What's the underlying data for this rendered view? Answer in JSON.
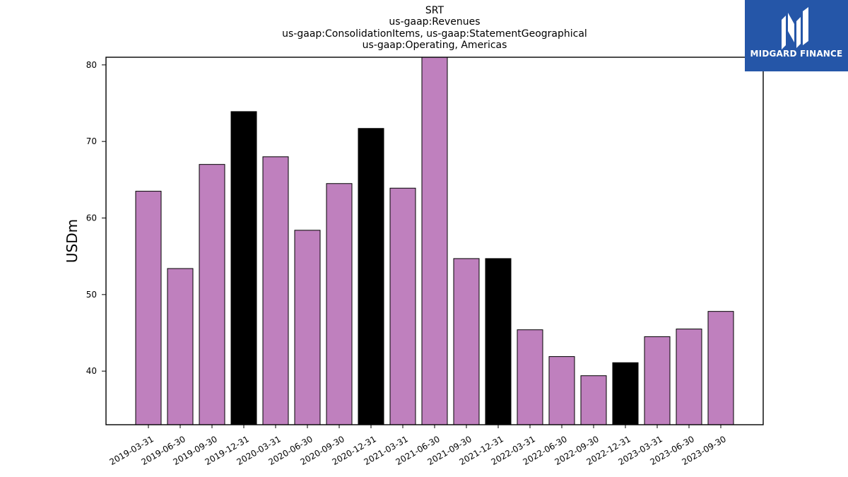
{
  "chart_data": {
    "type": "bar",
    "title_lines": [
      "SRT",
      "us-gaap:Revenues",
      "us-gaap:ConsolidationItems, us-gaap:StatementGeographical",
      "us-gaap:Operating, Americas"
    ],
    "xlabel": "",
    "ylabel": "USDm",
    "ylim": [
      33,
      81
    ],
    "yticks": [
      40,
      50,
      60,
      70,
      80
    ],
    "grid": false,
    "categories": [
      "2019-03-31",
      "2019-06-30",
      "2019-09-30",
      "2019-12-31",
      "2020-03-31",
      "2020-06-30",
      "2020-09-30",
      "2020-12-31",
      "2021-03-31",
      "2021-06-30",
      "2021-09-30",
      "2021-12-31",
      "2022-03-31",
      "2022-06-30",
      "2022-09-30",
      "2022-12-31",
      "2023-03-31",
      "2023-06-30",
      "2023-09-30"
    ],
    "values": [
      63.5,
      53.4,
      67.0,
      73.9,
      68.0,
      58.4,
      64.5,
      71.7,
      63.9,
      81.0,
      54.7,
      54.7,
      45.4,
      41.9,
      39.4,
      41.1,
      44.5,
      45.5,
      47.8
    ],
    "highlight_categories": [
      "2019-12-31",
      "2020-12-31",
      "2021-12-31",
      "2022-12-31"
    ],
    "colors": {
      "bar": "#bf80be",
      "highlight": "#000000",
      "edge": "#000000"
    }
  },
  "logo": {
    "text": "MIDGARD FINANCE",
    "background": "#2556a8"
  }
}
